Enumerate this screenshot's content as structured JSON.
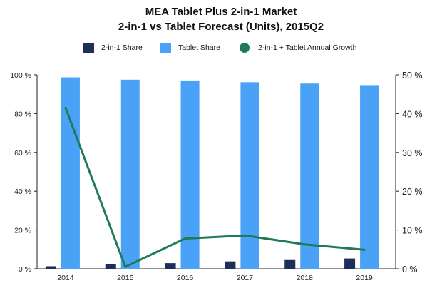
{
  "chart_data": {
    "type": "bar+line",
    "title": "MEA Tablet Plus 2-in-1 Market",
    "subtitle": "2-in-1 vs Tablet  Forecast (Units), 2015Q2",
    "categories": [
      "2014",
      "2015",
      "2016",
      "2017",
      "2018",
      "2019"
    ],
    "series": [
      {
        "name": "2-in-1 Share",
        "type": "bar",
        "axis": "left",
        "color": "#1f2d5a",
        "values": [
          1.3,
          2.5,
          2.9,
          3.8,
          4.5,
          5.3
        ]
      },
      {
        "name": "Tablet Share",
        "type": "bar",
        "axis": "left",
        "color": "#4aa2f7",
        "values": [
          98.7,
          97.5,
          97.1,
          96.2,
          95.5,
          94.7
        ]
      },
      {
        "name": "2-in-1 + Tablet Annual Growth",
        "type": "line",
        "axis": "right",
        "color": "#1f7a55",
        "values": [
          41.5,
          0.5,
          7.8,
          8.6,
          6.3,
          4.9
        ]
      }
    ],
    "y_left": {
      "min": 0,
      "max": 100,
      "ticks": [
        "0 %",
        "20 %",
        "40 %",
        "60 %",
        "80 %",
        "100 %"
      ]
    },
    "y_right": {
      "min": 0,
      "max": 50,
      "ticks": [
        "0 %",
        "10 %",
        "20 %",
        "30 %",
        "40 %",
        "50 %"
      ]
    },
    "grid": false,
    "legend_position": "top"
  }
}
